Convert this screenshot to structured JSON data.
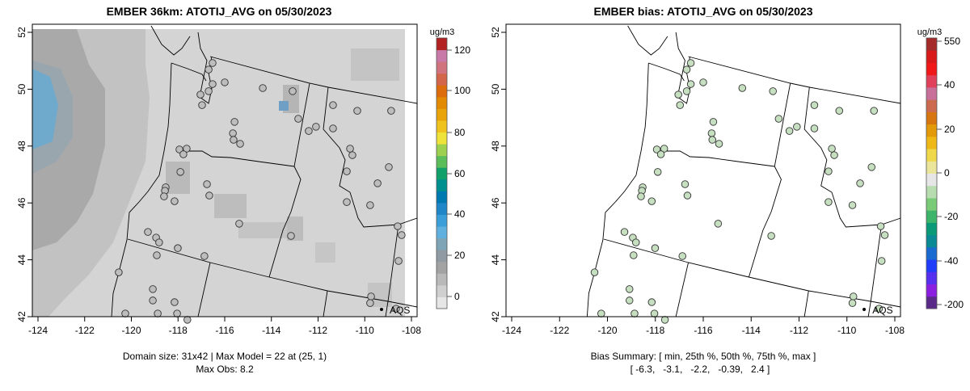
{
  "panels": [
    {
      "id": "model",
      "title": "EMBER 36km: ATOTIJ_AVG on 05/30/2023",
      "footer_lines": [
        "Domain size: 31x42 | Max Model = 22 at (25, 1)",
        "Max Obs: 8.2"
      ],
      "colorbar": {
        "unit": "ug/m3",
        "ticks": [
          "120",
          "100",
          "80",
          "60",
          "40",
          "20",
          "0"
        ],
        "colors": [
          "#e6e6e6",
          "#cfcfcf",
          "#b9b9b9",
          "#a3a3a3",
          "#8f9aa2",
          "#7ea4b6",
          "#5fb0de",
          "#3a9fd8",
          "#1f86c8",
          "#0079b0",
          "#008f8f",
          "#12a06a",
          "#5bbd5a",
          "#9ed050",
          "#eee33a",
          "#efc21d",
          "#e9a40c",
          "#e38a05",
          "#dc6c0c",
          "#d2654a",
          "#d0737e",
          "#c879a8",
          "#b22222"
        ]
      },
      "station_fill": "#bdbdbd"
    },
    {
      "id": "bias",
      "title": "EMBER bias: ATOTIJ_AVG on 05/30/2023",
      "footer_lines": [
        "Bias Summary: [ min, 25th %, 50th %, 75th %, max ]",
        "[ -6.3,   -3.1,   -2.2,   -0.39,   2.4 ]"
      ],
      "colorbar": {
        "unit": "ug/m3",
        "ticks": [
          "550",
          "40",
          "20",
          "0",
          "-20",
          "-40",
          "-200"
        ],
        "colors": [
          "#5a2a88",
          "#8a1fe0",
          "#5530ee",
          "#1f3dfa",
          "#1a6ad0",
          "#0b8a96",
          "#0a9a78",
          "#3cb56a",
          "#7acb78",
          "#b6dcb0",
          "#e6e6e6",
          "#ebe59c",
          "#efd84a",
          "#eeb817",
          "#e39a0a",
          "#d77610",
          "#cc6a50",
          "#c8709a",
          "#e0405a",
          "#f01818",
          "#d81a1a",
          "#a52a2a"
        ]
      },
      "station_fill": "#c6dfc0"
    }
  ],
  "legend": {
    "marker_label": "AQS"
  },
  "chart_data": {
    "type": "map-scatter",
    "x_ticks": [
      "-124",
      "-122",
      "-120",
      "-118",
      "-116",
      "-114",
      "-112",
      "-110",
      "-108"
    ],
    "y_ticks": [
      "42",
      "44",
      "46",
      "48",
      "50",
      "52"
    ],
    "xlim": [
      -124.25,
      -107.8
    ],
    "ylim": [
      41.95,
      52.3
    ],
    "stations": [
      [
        -116.52,
        50.92
      ],
      [
        -116.69,
        50.69
      ],
      [
        -116.0,
        50.24
      ],
      [
        -116.52,
        50.18
      ],
      [
        -116.69,
        49.93
      ],
      [
        -117.04,
        49.81
      ],
      [
        -116.97,
        49.44
      ],
      [
        -114.37,
        50.04
      ],
      [
        -113.09,
        49.93
      ],
      [
        -111.36,
        49.44
      ],
      [
        -110.32,
        49.24
      ],
      [
        -108.87,
        49.24
      ],
      [
        -112.85,
        48.96
      ],
      [
        -112.09,
        48.68
      ],
      [
        -112.4,
        48.53
      ],
      [
        -111.36,
        48.62
      ],
      [
        -115.58,
        48.85
      ],
      [
        -115.65,
        48.45
      ],
      [
        -115.62,
        48.22
      ],
      [
        -115.34,
        48.08
      ],
      [
        -110.63,
        47.91
      ],
      [
        -110.53,
        47.68
      ],
      [
        -108.97,
        47.26
      ],
      [
        -110.77,
        47.11
      ],
      [
        -109.45,
        46.69
      ],
      [
        -110.77,
        46.03
      ],
      [
        -109.77,
        45.92
      ],
      [
        -108.59,
        45.18
      ],
      [
        -108.42,
        44.87
      ],
      [
        -108.55,
        43.96
      ],
      [
        -109.73,
        42.71
      ],
      [
        -109.77,
        42.48
      ],
      [
        -108.66,
        42.28
      ],
      [
        -117.94,
        47.88
      ],
      [
        -117.63,
        47.91
      ],
      [
        -117.77,
        47.71
      ],
      [
        -117.9,
        47.09
      ],
      [
        -118.53,
        46.55
      ],
      [
        -118.56,
        46.43
      ],
      [
        -118.6,
        46.23
      ],
      [
        -118.15,
        46.06
      ],
      [
        -116.76,
        46.66
      ],
      [
        -116.66,
        46.26
      ],
      [
        -115.38,
        45.27
      ],
      [
        -113.16,
        44.84
      ],
      [
        -119.29,
        44.98
      ],
      [
        -118.94,
        44.78
      ],
      [
        -118.81,
        44.61
      ],
      [
        -118.01,
        44.41
      ],
      [
        -118.91,
        44.16
      ],
      [
        -116.87,
        44.13
      ],
      [
        -120.54,
        43.56
      ],
      [
        -119.08,
        42.97
      ],
      [
        -119.08,
        42.57
      ],
      [
        -118.15,
        42.51
      ],
      [
        -120.26,
        42.11
      ],
      [
        -118.87,
        42.11
      ],
      [
        -118.04,
        42.11
      ],
      [
        -117.6,
        41.89
      ]
    ]
  }
}
